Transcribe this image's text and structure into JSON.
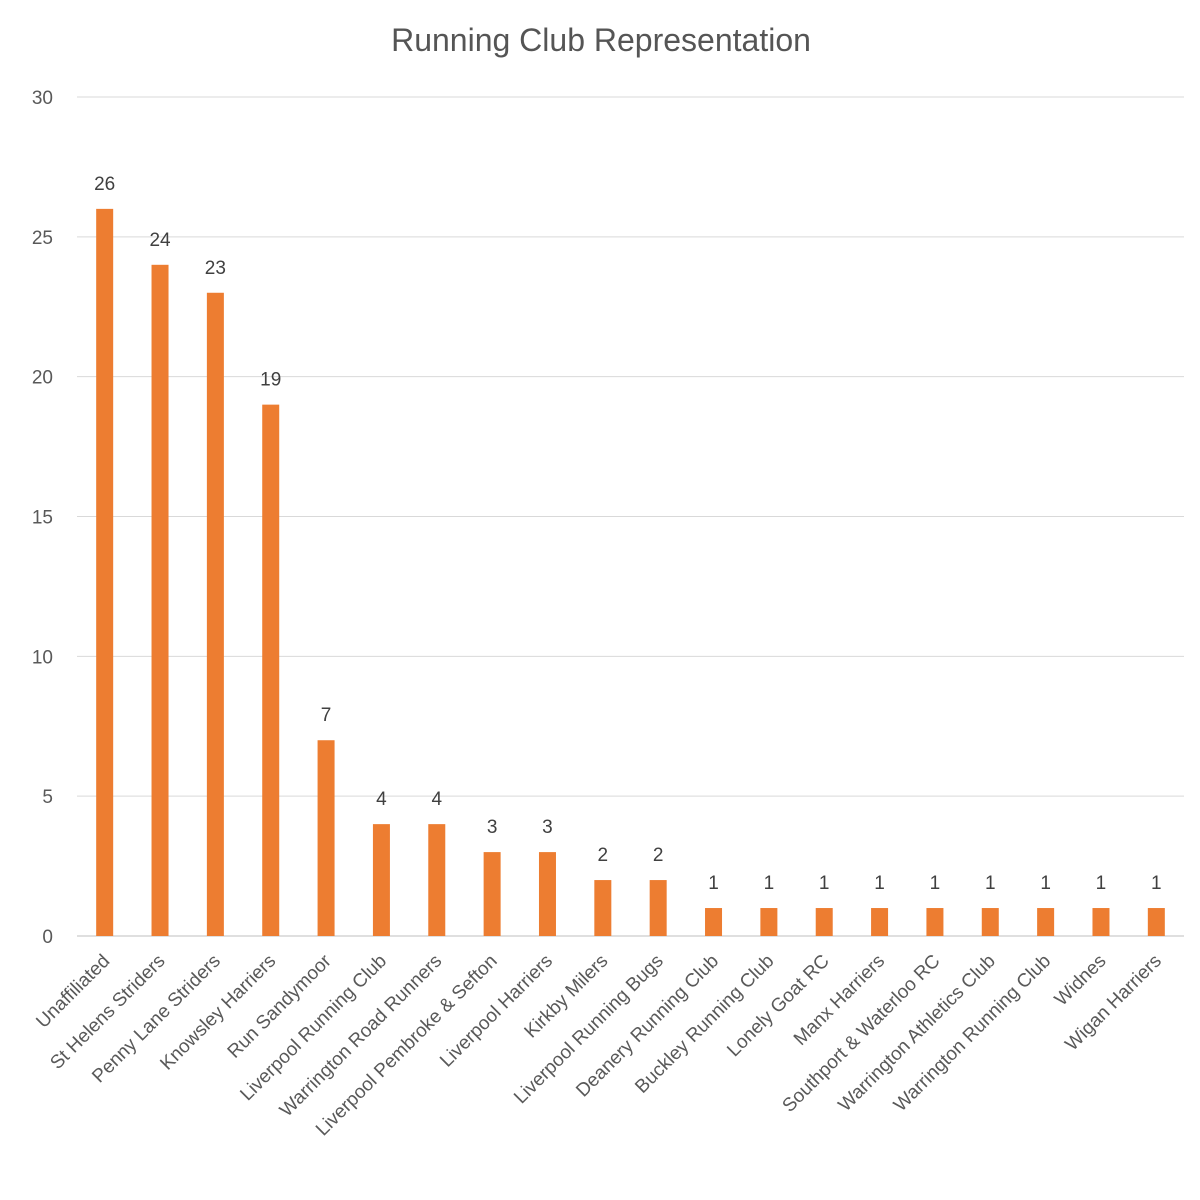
{
  "chart_data": {
    "type": "bar",
    "title": "Running Club Representation",
    "xlabel": "",
    "ylabel": "",
    "ylim": [
      0,
      30
    ],
    "yticks": [
      0,
      5,
      10,
      15,
      20,
      25,
      30
    ],
    "grid": true,
    "legend": "none",
    "bar_color": "#ed7d31",
    "categories": [
      "Unaffiliated",
      "St Helens Striders",
      "Penny Lane Striders",
      "Knowsley Harriers",
      "Run Sandymoor",
      "Liverpool Running Club",
      "Warrington Road Runners",
      "Liverpool Pembroke & Sefton",
      "Liverpool Harriers",
      "Kirkby Milers",
      "Liverpool Running Bugs",
      "Deanery Running Club",
      "Buckley Running Club",
      "Lonely Goat RC",
      "Manx Harriers",
      "Southport & Waterloo RC",
      "Warrington Athletics Club",
      "Warrington Running Club",
      "Widnes",
      "Wigan Harriers"
    ],
    "values": [
      26,
      24,
      23,
      19,
      7,
      4,
      4,
      3,
      3,
      2,
      2,
      1,
      1,
      1,
      1,
      1,
      1,
      1,
      1,
      1
    ]
  }
}
